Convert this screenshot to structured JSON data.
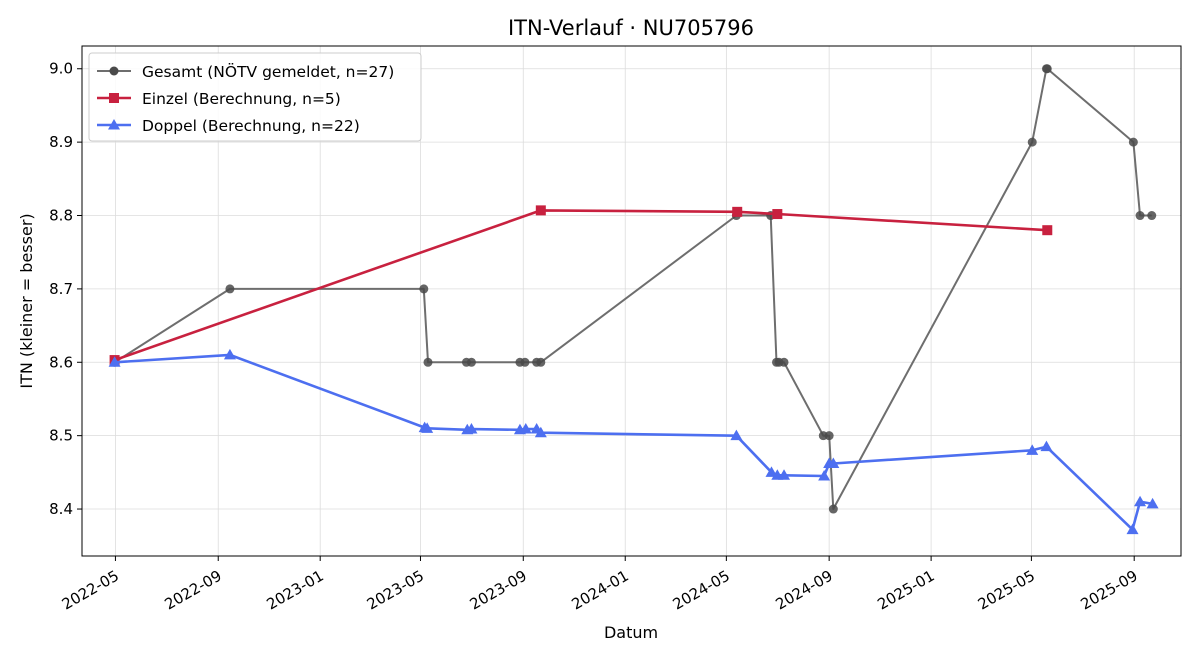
{
  "chart_data": {
    "type": "line",
    "title": "ITN-Verlauf · NU705796",
    "xlabel": "Datum",
    "ylabel": "ITN  (kleiner = besser)",
    "xlim": [
      "2022-03-22",
      "2025-10-27"
    ],
    "ylim": [
      8.336,
      9.031
    ],
    "x_ticks": [
      "2022-05",
      "2022-09",
      "2023-01",
      "2023-05",
      "2023-09",
      "2024-01",
      "2024-05",
      "2024-09",
      "2025-01",
      "2025-05",
      "2025-09"
    ],
    "y_ticks": [
      8.4,
      8.5,
      8.6,
      8.7,
      8.8,
      8.9,
      9.0
    ],
    "grid": true,
    "legend_position": "top-left",
    "series": [
      {
        "name": "Gesamt (NÖTV gemeldet, n=27)",
        "color": "#6e6e6e",
        "marker": "circle",
        "points": [
          {
            "x": "2022-04-30",
            "y": 8.6
          },
          {
            "x": "2022-09-15",
            "y": 8.7
          },
          {
            "x": "2023-05-05",
            "y": 8.7
          },
          {
            "x": "2023-05-10",
            "y": 8.6
          },
          {
            "x": "2023-06-25",
            "y": 8.6
          },
          {
            "x": "2023-07-01",
            "y": 8.6
          },
          {
            "x": "2023-08-28",
            "y": 8.6
          },
          {
            "x": "2023-09-03",
            "y": 8.6
          },
          {
            "x": "2023-09-17",
            "y": 8.6
          },
          {
            "x": "2023-09-22",
            "y": 8.6
          },
          {
            "x": "2024-05-13",
            "y": 8.8
          },
          {
            "x": "2024-06-23",
            "y": 8.8
          },
          {
            "x": "2024-06-30",
            "y": 8.6
          },
          {
            "x": "2024-07-03",
            "y": 8.6
          },
          {
            "x": "2024-07-09",
            "y": 8.6
          },
          {
            "x": "2024-08-25",
            "y": 8.5
          },
          {
            "x": "2024-09-01",
            "y": 8.5
          },
          {
            "x": "2024-09-06",
            "y": 8.4
          },
          {
            "x": "2025-05-02",
            "y": 8.9
          },
          {
            "x": "2025-05-19",
            "y": 9.0
          },
          {
            "x": "2025-05-20",
            "y": 9.0
          },
          {
            "x": "2025-08-31",
            "y": 8.9
          },
          {
            "x": "2025-09-08",
            "y": 8.8
          },
          {
            "x": "2025-09-22",
            "y": 8.8
          }
        ]
      },
      {
        "name": "Einzel (Berechnung, n=5)",
        "color": "#c8213f",
        "marker": "square",
        "points": [
          {
            "x": "2022-04-30",
            "y": 8.603
          },
          {
            "x": "2023-09-22",
            "y": 8.807
          },
          {
            "x": "2024-05-14",
            "y": 8.805
          },
          {
            "x": "2024-07-01",
            "y": 8.802
          },
          {
            "x": "2025-05-20",
            "y": 8.78
          }
        ]
      },
      {
        "name": "Doppel (Berechnung, n=22)",
        "color": "#4d6ff0",
        "marker": "triangle",
        "points": [
          {
            "x": "2022-04-30",
            "y": 8.6
          },
          {
            "x": "2022-09-15",
            "y": 8.61
          },
          {
            "x": "2023-05-06",
            "y": 8.511
          },
          {
            "x": "2023-05-09",
            "y": 8.51
          },
          {
            "x": "2023-06-26",
            "y": 8.508
          },
          {
            "x": "2023-07-01",
            "y": 8.509
          },
          {
            "x": "2023-08-28",
            "y": 8.508
          },
          {
            "x": "2023-09-04",
            "y": 8.509
          },
          {
            "x": "2023-09-17",
            "y": 8.509
          },
          {
            "x": "2023-09-22",
            "y": 8.504
          },
          {
            "x": "2024-05-13",
            "y": 8.5
          },
          {
            "x": "2024-06-24",
            "y": 8.45
          },
          {
            "x": "2024-07-01",
            "y": 8.446
          },
          {
            "x": "2024-07-09",
            "y": 8.446
          },
          {
            "x": "2024-08-26",
            "y": 8.445
          },
          {
            "x": "2024-09-01",
            "y": 8.462
          },
          {
            "x": "2024-09-06",
            "y": 8.462
          },
          {
            "x": "2025-05-02",
            "y": 8.48
          },
          {
            "x": "2025-05-19",
            "y": 8.485
          },
          {
            "x": "2025-08-30",
            "y": 8.372
          },
          {
            "x": "2025-09-08",
            "y": 8.41
          },
          {
            "x": "2025-09-23",
            "y": 8.407
          }
        ]
      }
    ]
  }
}
